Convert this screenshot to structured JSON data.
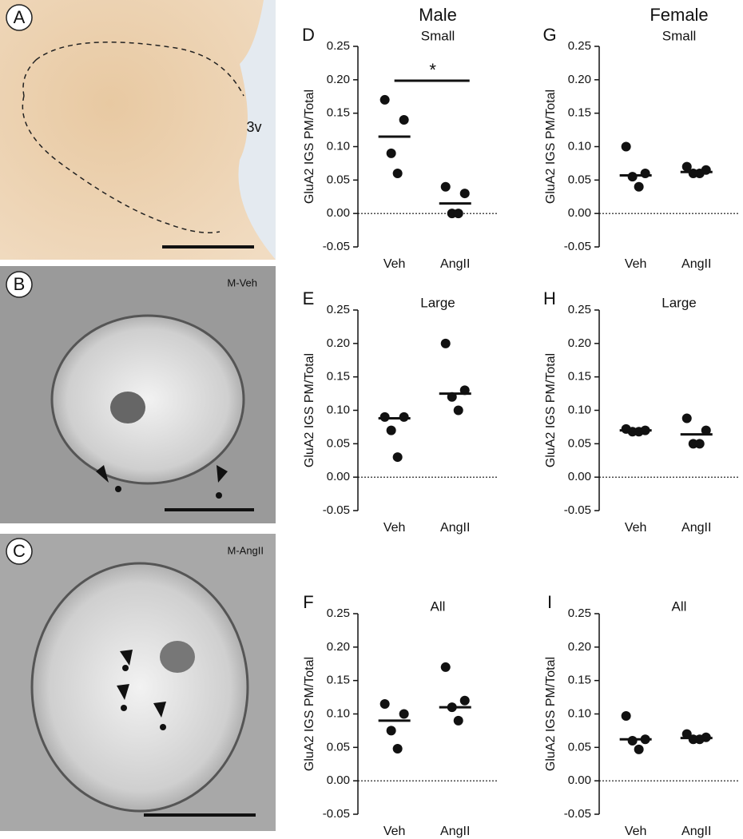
{
  "images": [
    {
      "panel": "A",
      "label": "3v"
    },
    {
      "panel": "B",
      "label": "M-Veh"
    },
    {
      "panel": "C",
      "label": "M-AngII"
    }
  ],
  "chart_data": [
    {
      "type": "dot",
      "panel": "D",
      "header": "Male",
      "title": "Small",
      "ylabel": "GluA2 IGS PM/Total",
      "categories": [
        "Veh",
        "AngII"
      ],
      "points": [
        [
          0.17,
          0.14,
          0.09,
          0.06
        ],
        [
          0.04,
          0.03,
          0.0,
          0.0
        ]
      ],
      "medians": [
        0.115,
        0.015
      ],
      "annotation": "*",
      "ylim": [
        -0.05,
        0.25
      ],
      "yticks": [
        {
          "value": -0.05,
          "label": "-0.05"
        },
        {
          "value": 0,
          "label": "0.00"
        },
        {
          "value": 0.05,
          "label": "0.05"
        },
        {
          "value": 0.1,
          "label": "0.10"
        },
        {
          "value": 0.15,
          "label": "0.15"
        },
        {
          "value": 0.2,
          "label": "0.20"
        },
        {
          "value": 0.25,
          "label": "0.25"
        }
      ],
      "zero_line": true
    },
    {
      "type": "dot",
      "panel": "E",
      "title": "Large",
      "ylabel": "GluA2 IGS PM/Total",
      "categories": [
        "Veh",
        "AngII"
      ],
      "points": [
        [
          0.09,
          0.09,
          0.07,
          0.03
        ],
        [
          0.2,
          0.13,
          0.12,
          0.1
        ]
      ],
      "medians": [
        0.088,
        0.125
      ],
      "ylim": [
        -0.05,
        0.25
      ],
      "yticks": [
        {
          "value": -0.05,
          "label": "-0.05"
        },
        {
          "value": 0,
          "label": "0.00"
        },
        {
          "value": 0.05,
          "label": "0.05"
        },
        {
          "value": 0.1,
          "label": "0.10"
        },
        {
          "value": 0.15,
          "label": "0.15"
        },
        {
          "value": 0.2,
          "label": "0.20"
        },
        {
          "value": 0.25,
          "label": "0.25"
        }
      ],
      "zero_line": true
    },
    {
      "type": "dot",
      "panel": "F",
      "title": "All",
      "ylabel": "GluA2 IGS PM/Total",
      "categories": [
        "Veh",
        "AngII"
      ],
      "points": [
        [
          0.115,
          0.1,
          0.075,
          0.048
        ],
        [
          0.17,
          0.12,
          0.11,
          0.09
        ]
      ],
      "medians": [
        0.09,
        0.11
      ],
      "ylim": [
        -0.05,
        0.25
      ],
      "yticks": [
        {
          "value": -0.05,
          "label": "-0.05"
        },
        {
          "value": 0,
          "label": "0.00"
        },
        {
          "value": 0.05,
          "label": "0.05"
        },
        {
          "value": 0.1,
          "label": "0.10"
        },
        {
          "value": 0.15,
          "label": "0.15"
        },
        {
          "value": 0.2,
          "label": "0.20"
        },
        {
          "value": 0.25,
          "label": "0.25"
        }
      ],
      "zero_line": true
    },
    {
      "type": "dot",
      "panel": "G",
      "header": "Female",
      "title": "Small",
      "ylabel": "GluA2 IGS PM/Total",
      "categories": [
        "Veh",
        "AngII"
      ],
      "points": [
        [
          0.1,
          0.06,
          0.055,
          0.04
        ],
        [
          0.07,
          0.065,
          0.06,
          0.06
        ]
      ],
      "medians": [
        0.057,
        0.062
      ],
      "ylim": [
        -0.05,
        0.25
      ],
      "yticks": [
        {
          "value": -0.05,
          "label": "-0.05"
        },
        {
          "value": 0,
          "label": "0.00"
        },
        {
          "value": 0.05,
          "label": "0.05"
        },
        {
          "value": 0.1,
          "label": "0.10"
        },
        {
          "value": 0.15,
          "label": "0.15"
        },
        {
          "value": 0.2,
          "label": "0.20"
        },
        {
          "value": 0.25,
          "label": "0.25"
        }
      ],
      "zero_line": true
    },
    {
      "type": "dot",
      "panel": "H",
      "title": "Large",
      "ylabel": "GluA2 IGS PM/Total",
      "categories": [
        "Veh",
        "AngII"
      ],
      "points": [
        [
          0.072,
          0.07,
          0.068,
          0.068
        ],
        [
          0.088,
          0.07,
          0.05,
          0.05
        ]
      ],
      "medians": [
        0.07,
        0.064
      ],
      "ylim": [
        -0.05,
        0.25
      ],
      "yticks": [
        {
          "value": -0.05,
          "label": "-0.05"
        },
        {
          "value": 0,
          "label": "0.00"
        },
        {
          "value": 0.05,
          "label": "0.05"
        },
        {
          "value": 0.1,
          "label": "0.10"
        },
        {
          "value": 0.15,
          "label": "0.15"
        },
        {
          "value": 0.2,
          "label": "0.20"
        },
        {
          "value": 0.25,
          "label": "0.25"
        }
      ],
      "zero_line": true
    },
    {
      "type": "dot",
      "panel": "I",
      "title": "All",
      "ylabel": "GluA2 IGS PM/Total",
      "categories": [
        "Veh",
        "AngII"
      ],
      "points": [
        [
          0.097,
          0.062,
          0.06,
          0.047
        ],
        [
          0.07,
          0.065,
          0.062,
          0.062
        ]
      ],
      "medians": [
        0.062,
        0.064
      ],
      "ylim": [
        -0.05,
        0.25
      ],
      "yticks": [
        {
          "value": -0.05,
          "label": "-0.05"
        },
        {
          "value": 0,
          "label": "0.00"
        },
        {
          "value": 0.05,
          "label": "0.05"
        },
        {
          "value": 0.1,
          "label": "0.10"
        },
        {
          "value": 0.15,
          "label": "0.15"
        },
        {
          "value": 0.2,
          "label": "0.20"
        },
        {
          "value": 0.25,
          "label": "0.25"
        }
      ],
      "zero_line": true
    }
  ]
}
